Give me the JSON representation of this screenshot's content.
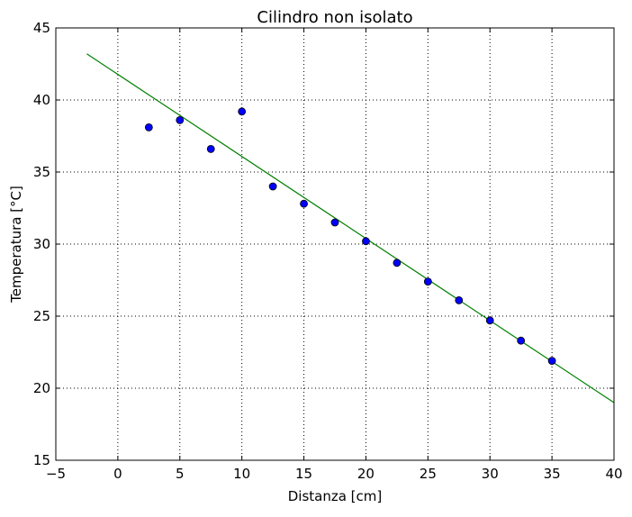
{
  "chart_data": {
    "type": "scatter",
    "title": "Cilindro non isolato",
    "xlabel": "Distanza [cm]",
    "ylabel": "Temperatura [°C]",
    "xlim": [
      -5,
      40
    ],
    "ylim": [
      15,
      45
    ],
    "xticks": [
      -5,
      0,
      5,
      10,
      15,
      20,
      25,
      30,
      35,
      40
    ],
    "yticks": [
      15,
      20,
      25,
      30,
      35,
      40,
      45
    ],
    "xtick_labels": [
      "−5",
      "0",
      "5",
      "10",
      "15",
      "20",
      "25",
      "30",
      "35",
      "40"
    ],
    "ytick_labels": [
      "15",
      "20",
      "25",
      "30",
      "35",
      "40",
      "45"
    ],
    "grid": true,
    "series": [
      {
        "kind": "scatter",
        "color": "#0000ff",
        "x": [
          2.5,
          5,
          7.5,
          10,
          12.5,
          15,
          17.5,
          20,
          22.5,
          25,
          27.5,
          30,
          32.5,
          35
        ],
        "y": [
          38.1,
          38.6,
          36.6,
          39.2,
          34.0,
          32.8,
          31.5,
          30.2,
          28.7,
          27.4,
          26.1,
          24.7,
          23.3,
          21.9
        ]
      },
      {
        "kind": "line",
        "color": "#008000",
        "x": [
          -2.5,
          40
        ],
        "y": [
          43.2,
          19.0
        ]
      }
    ]
  }
}
